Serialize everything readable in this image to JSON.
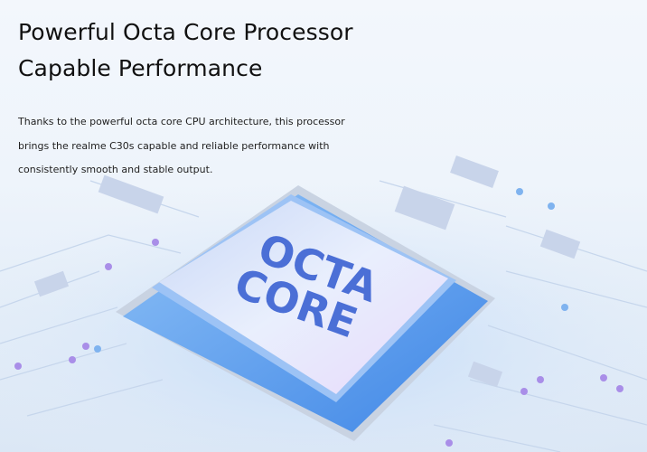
{
  "heading": {
    "line1": "Powerful Octa Core Processor",
    "line2": "Capable Performance"
  },
  "description": "Thanks to the powerful octa core CPU architecture, this processor brings the realme C30s capable and reliable performance with consistently smooth and stable output.",
  "chip": {
    "label_line1": "OCTA",
    "label_line2": "CORE"
  },
  "colors": {
    "chip_text": "#4b6fd6",
    "chip_face": "#d8e2fb",
    "chip_glow": "#6fa4ef"
  }
}
